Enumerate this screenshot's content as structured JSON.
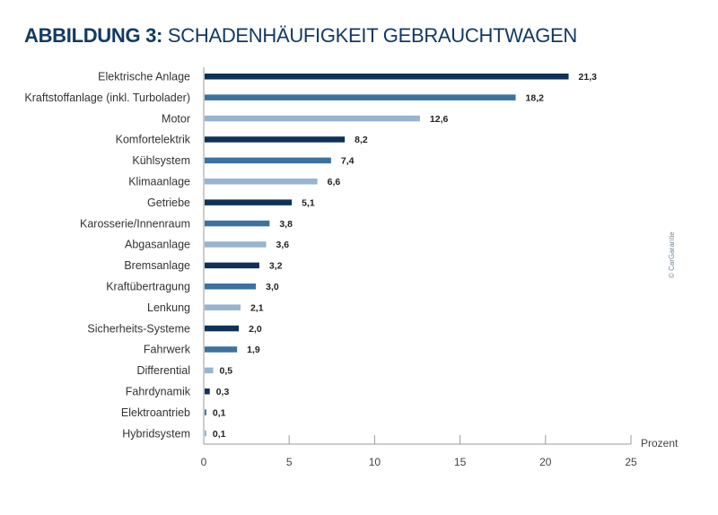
{
  "title": {
    "bold": "ABBILDUNG 3:",
    "rest": "SCHADENHÄUFIGKEIT GEBRAUCHTWAGEN"
  },
  "copyright": "© CarGarantie",
  "colors": [
    "#0f3257",
    "#3b72a0",
    "#97b4d0"
  ],
  "chart_data": {
    "type": "bar",
    "orientation": "horizontal",
    "title": "ABBILDUNG 3: SCHADENHÄUFIGKEIT GEBRAUCHTWAGEN",
    "xlabel": "Prozent",
    "xlim": [
      0,
      25
    ],
    "xticks": [
      0,
      5,
      10,
      15,
      20,
      25
    ],
    "grid": false,
    "categories": [
      "Elektrische Anlage",
      "Kraftstoffanlage (inkl. Turbolader)",
      "Motor",
      "Komfortelektrik",
      "Kühlsystem",
      "Klimaanlage",
      "Getriebe",
      "Karosserie/Innenraum",
      "Abgasanlage",
      "Bremsanlage",
      "Kraftübertragung",
      "Lenkung",
      "Sicherheits-Systeme",
      "Fahrwerk",
      "Differential",
      "Fahrdynamik",
      "Elektroantrieb",
      "Hybridsystem"
    ],
    "values": [
      21.3,
      18.2,
      12.6,
      8.2,
      7.4,
      6.6,
      5.1,
      3.8,
      3.6,
      3.2,
      3.0,
      2.1,
      2.0,
      1.9,
      0.5,
      0.3,
      0.1,
      0.1
    ],
    "value_labels": [
      "21,3",
      "18,2",
      "12,6",
      "8,2",
      "7,4",
      "6,6",
      "5,1",
      "3,8",
      "3,6",
      "3,2",
      "3,0",
      "2,1",
      "2,0",
      "1,9",
      "0,5",
      "0,3",
      "0,1",
      "0,1"
    ]
  }
}
